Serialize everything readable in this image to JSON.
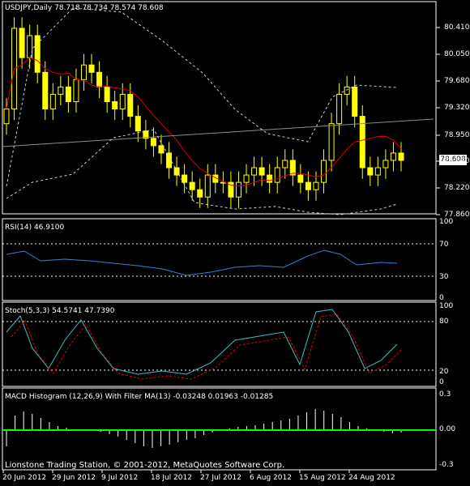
{
  "symbol_info": "USDJPY,Daily  78.718 78.734 78.574 78.608",
  "current_price": "78.608",
  "price_axis": [
    "80.410",
    "80.050",
    "79.680",
    "79.320",
    "78.950",
    "78.590",
    "78.220",
    "77.860"
  ],
  "rsi": {
    "label": "RSI(14) 46.9100",
    "levels": [
      "100",
      "70",
      "30",
      "0"
    ]
  },
  "stoch": {
    "label": "Stoch(5,3,3) 54.5741 47.7390",
    "levels": [
      "100",
      "80",
      "20",
      "0"
    ]
  },
  "macd": {
    "label": "MACD Histogram (12,26,9) With Filter MA(13) -0.03248 0.01963 -0.01285",
    "levels": [
      "0.3",
      "0.00",
      "-0.3"
    ]
  },
  "copyright": "Lionstone Trading Station, © 2001-2012, MetaQuotes Software Corp.",
  "date_axis": [
    "20 Jun 2012",
    "29 Jun 2012",
    "9 Jul 2012",
    "18 Jul 2012",
    "27 Jul 2012",
    "6 Aug 2012",
    "15 Aug 2012",
    "24 Aug 2012"
  ],
  "colors": {
    "candle": "#ffff00",
    "ma_fast": "#e00000",
    "ma_slow": "#8c8c8c",
    "bands": "#d0d0d0",
    "rsi_line": "#3a7fd5",
    "stoch_main": "#3fbfbf",
    "stoch_signal": "#e00000",
    "macd_hist": "#ffffff",
    "macd_signal": "#00ff00",
    "grid": "#ffffff"
  },
  "chart_data": {
    "type": "line",
    "candles_close": [
      79.3,
      80.4,
      80.0,
      80.3,
      79.8,
      79.3,
      79.5,
      79.6,
      79.4,
      79.7,
      79.9,
      79.8,
      79.6,
      79.4,
      79.3,
      79.5,
      79.2,
      79.0,
      78.9,
      78.8,
      78.7,
      78.5,
      78.4,
      78.3,
      78.2,
      78.1,
      78.4,
      78.3,
      78.3,
      78.1,
      78.3,
      78.4,
      78.5,
      78.4,
      78.3,
      78.5,
      78.6,
      78.4,
      78.3,
      78.2,
      78.3,
      78.6,
      79.1,
      79.5,
      79.6,
      79.2,
      78.5,
      78.4,
      78.5,
      78.6,
      78.7,
      78.6
    ]
  }
}
